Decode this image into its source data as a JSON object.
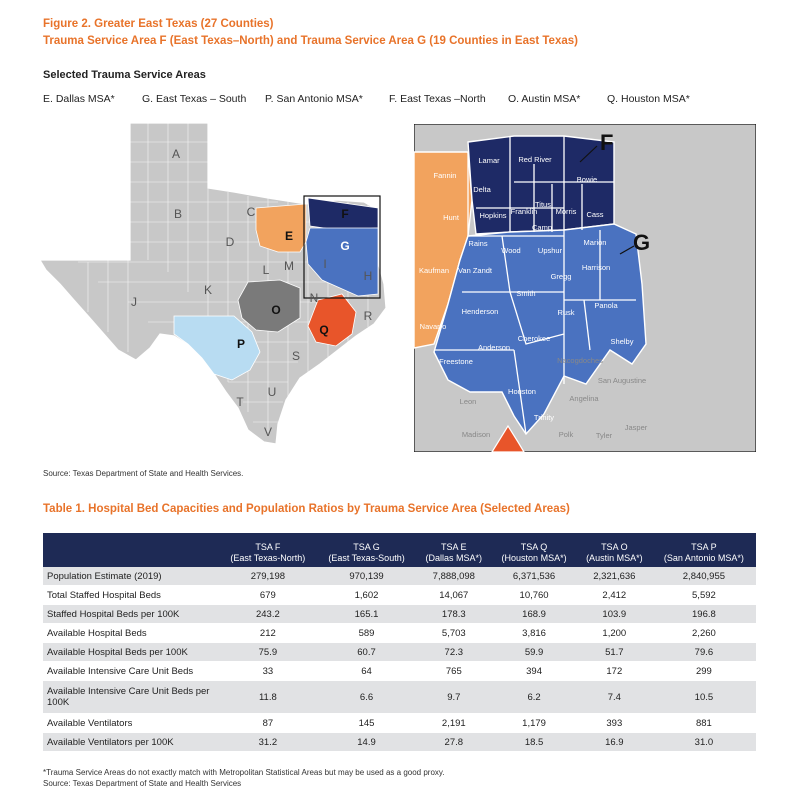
{
  "figure": {
    "title_line1": "Figure 2. Greater East Texas (27 Counties)",
    "title_line2": "Trauma Service Area F (East Texas–North) and Trauma Service Area G (19 Counties in East Texas)"
  },
  "selected": {
    "heading": "Selected Trauma Service Areas",
    "items": [
      "E. Dallas MSA*",
      "G. East Texas – South",
      "P. San Antonio MSA*",
      "F. East Texas –North",
      "O. Austin MSA*",
      "Q. Houston MSA*"
    ]
  },
  "colors": {
    "navy": "#1e2a66",
    "blue": "#4a72c0",
    "orange": "#f2a35e",
    "red_orange": "#e8552a",
    "light_blue": "#b8dcf2",
    "dark_gray": "#7a7a7a",
    "gray": "#c8c8c8",
    "title": "#e8732a",
    "table_header": "#1e2a55"
  },
  "map_left": {
    "region_letters": [
      "A",
      "B",
      "C",
      "D",
      "E",
      "F",
      "G",
      "H",
      "I",
      "J",
      "K",
      "L",
      "M",
      "N",
      "O",
      "P",
      "Q",
      "R",
      "S",
      "T",
      "U",
      "V"
    ]
  },
  "map_right": {
    "area_labels": [
      "F",
      "G"
    ],
    "counties": [
      "Lamar",
      "Red River",
      "Bowie",
      "Delta",
      "Hopkins",
      "Franklin",
      "Titus",
      "Morris",
      "Cass",
      "Camp",
      "Fannin",
      "Hunt",
      "Rains",
      "Wood",
      "Upshur",
      "Marion",
      "Harrison",
      "Kaufman",
      "Van Zandt",
      "Gregg",
      "Smith",
      "Henderson",
      "Rusk",
      "Panola",
      "Navarro",
      "Anderson",
      "Cherokee",
      "Nacogdoches",
      "Shelby",
      "Freestone",
      "San Augustine",
      "Leon",
      "Houston",
      "Angelina",
      "Madison",
      "Trinity",
      "Polk",
      "Tyler",
      "Jasper"
    ]
  },
  "source1": "Source: Texas Department of State and Health Services.",
  "table": {
    "title": "Table 1. Hospital Bed Capacities and Population Ratios by Trauma Service Area (Selected Areas)",
    "columns": [
      {
        "l1": "TSA F",
        "l2": "(East Texas-North)"
      },
      {
        "l1": "TSA G",
        "l2": "(East Texas-South)"
      },
      {
        "l1": "TSA E",
        "l2": "(Dallas MSA*)"
      },
      {
        "l1": "TSA Q",
        "l2": "(Houston MSA*)"
      },
      {
        "l1": "TSA O",
        "l2": "(Austin MSA*)"
      },
      {
        "l1": "TSA P",
        "l2": "(San Antonio MSA*)"
      }
    ],
    "rows": [
      {
        "label": "Population Estimate (2019)",
        "values": [
          "279,198",
          "970,139",
          "7,888,098",
          "6,371,536",
          "2,321,636",
          "2,840,955"
        ]
      },
      {
        "label": "Total Staffed Hospital Beds",
        "values": [
          "679",
          "1,602",
          "14,067",
          "10,760",
          "2,412",
          "5,592"
        ]
      },
      {
        "label": "Staffed Hospital Beds per 100K",
        "values": [
          "243.2",
          "165.1",
          "178.3",
          "168.9",
          "103.9",
          "196.8"
        ]
      },
      {
        "label": "Available Hospital Beds",
        "values": [
          "212",
          "589",
          "5,703",
          "3,816",
          "1,200",
          "2,260"
        ]
      },
      {
        "label": "Available Hospital Beds per 100K",
        "values": [
          "75.9",
          "60.7",
          "72.3",
          "59.9",
          "51.7",
          "79.6"
        ]
      },
      {
        "label": "Available Intensive Care Unit Beds",
        "values": [
          "33",
          "64",
          "765",
          "394",
          "172",
          "299"
        ]
      },
      {
        "label": "Available Intensive Care Unit Beds per 100K",
        "values": [
          "11.8",
          "6.6",
          "9.7",
          "6.2",
          "7.4",
          "10.5"
        ]
      },
      {
        "label": "Available Ventilators",
        "values": [
          "87",
          "145",
          "2,191",
          "1,179",
          "393",
          "881"
        ]
      },
      {
        "label": "Available Ventilators per 100K",
        "values": [
          "31.2",
          "14.9",
          "27.8",
          "18.5",
          "16.9",
          "31.0"
        ]
      }
    ]
  },
  "footnote": {
    "line1": "*Trauma Service Areas do not exactly match with Metropolitan Statistical Areas but may be used as a good proxy.",
    "line2": "Source: Texas Department of State and Health Services"
  }
}
